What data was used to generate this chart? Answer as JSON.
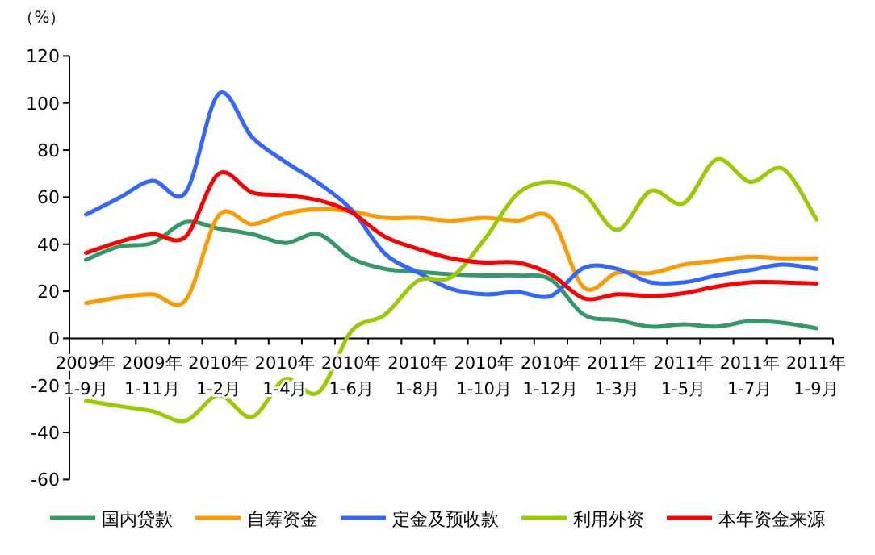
{
  "chart_data": {
    "type": "line",
    "ylabel": "（%）",
    "categories": [
      "2009年1-9月",
      null,
      "2009年1-11月",
      null,
      "2010年1-2月",
      null,
      "2010年1-4月",
      null,
      "2010年1-6月",
      null,
      "2010年1-8月",
      null,
      "2010年1-10月",
      null,
      "2010年1-12月",
      null,
      "2011年1-3月",
      null,
      "2011年1-5月",
      null,
      "2011年1-7月",
      null,
      "2011年1-9月"
    ],
    "ylim": [
      -60,
      120
    ],
    "yticks": [
      -60,
      -40,
      -20,
      0,
      20,
      40,
      60,
      80,
      100,
      120
    ],
    "grid": false,
    "legend": "bottom",
    "marker": "none",
    "line_style": "solid",
    "series": [
      {
        "name": "国内贷款",
        "color": "#339966",
        "values": [
          33.4,
          39,
          40.5,
          49.4,
          46.6,
          44.3,
          40.5,
          44.3,
          34,
          29.5,
          28.3,
          27.2,
          26.7,
          26.7,
          25,
          10,
          7.8,
          5,
          6,
          5,
          7.3,
          6.6,
          4.3
        ]
      },
      {
        "name": "自筹资金",
        "color": "#ff9900",
        "values": [
          15,
          17.4,
          18.7,
          16.2,
          52.3,
          48.5,
          53,
          55,
          54,
          51.2,
          51.2,
          50,
          51.2,
          50,
          51.2,
          21.5,
          27.9,
          27.7,
          31.3,
          33,
          34.7,
          34,
          34
        ]
      },
      {
        "name": "定金及预收款",
        "color": "#3366ff",
        "values": [
          52.6,
          59.7,
          67,
          62,
          104,
          85.5,
          75,
          66,
          54.6,
          36,
          28,
          21,
          18.7,
          19.7,
          18,
          30,
          29.5,
          23.8,
          23.8,
          26.7,
          29,
          31.3,
          29.5
        ]
      },
      {
        "name": "利用外资",
        "color": "#99cc00",
        "values": [
          -26.5,
          -28.8,
          -31,
          -35,
          -24.2,
          -33.4,
          -17.4,
          -23,
          3.2,
          10,
          24.5,
          26,
          42,
          61.5,
          66.5,
          61.5,
          46,
          62.6,
          57.4,
          76,
          66.5,
          72,
          50.5
        ]
      },
      {
        "name": "本年资金来源",
        "color": "#ff0000",
        "values": [
          36.3,
          41,
          44.3,
          43.2,
          70,
          62,
          60.8,
          58.7,
          53.5,
          43.2,
          38,
          34,
          32.2,
          32.2,
          27.2,
          17,
          18.7,
          18,
          19.2,
          22,
          23.8,
          23.8,
          23.3
        ]
      }
    ]
  }
}
